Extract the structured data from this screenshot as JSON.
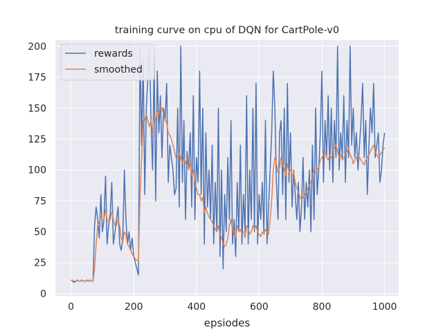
{
  "chart_data": {
    "type": "line",
    "title": "training curve on cpu of DQN for CartPole-v0",
    "xlabel": "epsiodes",
    "ylabel": "",
    "xlim": [
      -50,
      1045
    ],
    "ylim": [
      -2,
      205
    ],
    "xticks": [
      0,
      200,
      400,
      600,
      800,
      1000
    ],
    "yticks": [
      0,
      25,
      50,
      75,
      100,
      125,
      150,
      175,
      200
    ],
    "grid": true,
    "legend_position": "top-left",
    "series": [
      {
        "name": "rewards",
        "color": "#4c72b0",
        "x_start": 0,
        "x_step": 5,
        "values": [
          11,
          10,
          9,
          10,
          11,
          10,
          10,
          11,
          10,
          10,
          11,
          10,
          11,
          10,
          10,
          55,
          70,
          60,
          45,
          80,
          50,
          60,
          95,
          40,
          55,
          65,
          90,
          40,
          50,
          60,
          70,
          40,
          35,
          45,
          100,
          60,
          40,
          50,
          35,
          45,
          30,
          25,
          20,
          15,
          200,
          120,
          190,
          80,
          150,
          175,
          200,
          140,
          100,
          190,
          75,
          180,
          130,
          160,
          110,
          150,
          140,
          170,
          90,
          120,
          110,
          100,
          80,
          85,
          150,
          70,
          200,
          90,
          140,
          60,
          115,
          100,
          130,
          70,
          160,
          60,
          110,
          90,
          180,
          80,
          150,
          40,
          130,
          70,
          100,
          60,
          120,
          40,
          90,
          50,
          150,
          30,
          100,
          20,
          80,
          50,
          110,
          60,
          140,
          40,
          60,
          30,
          90,
          50,
          120,
          40,
          80,
          50,
          160,
          40,
          100,
          60,
          150,
          50,
          170,
          40,
          80,
          60,
          90,
          50,
          140,
          40,
          70,
          100,
          130,
          180,
          150,
          90,
          60,
          130,
          140,
          80,
          150,
          60,
          170,
          90,
          130,
          70,
          100,
          80,
          60,
          90,
          50,
          70,
          110,
          60,
          90,
          70,
          100,
          50,
          120,
          60,
          150,
          80,
          100,
          130,
          180,
          90,
          140,
          110,
          160,
          100,
          150,
          90,
          140,
          110,
          200,
          100,
          130,
          110,
          160,
          90,
          140,
          110,
          200,
          120,
          150,
          110,
          130,
          100,
          120,
          140,
          170,
          110,
          140,
          80,
          120,
          150,
          130,
          170,
          110,
          120,
          130,
          90,
          100,
          120,
          130
        ]
      },
      {
        "name": "smoothed",
        "color": "#dd8452",
        "x_start": 0,
        "x_step": 5,
        "values": [
          11,
          10.5,
          10,
          10,
          10.5,
          10,
          10,
          10.5,
          10,
          10,
          10.5,
          10,
          10.5,
          10,
          10,
          20,
          40,
          55,
          58,
          62,
          60,
          60,
          68,
          60,
          58,
          60,
          66,
          60,
          55,
          55,
          60,
          55,
          45,
          42,
          50,
          48,
          40,
          38,
          35,
          32,
          30,
          28,
          27,
          26,
          80,
          110,
          140,
          140,
          145,
          140,
          135,
          140,
          130,
          145,
          140,
          148,
          145,
          152,
          150,
          145,
          140,
          138,
          130,
          128,
          125,
          120,
          115,
          110,
          110,
          115,
          110,
          105,
          110,
          105,
          110,
          100,
          105,
          95,
          100,
          90,
          85,
          80,
          80,
          75,
          78,
          65,
          70,
          65,
          62,
          60,
          58,
          55,
          52,
          50,
          55,
          48,
          45,
          40,
          38,
          40,
          45,
          55,
          60,
          52,
          48,
          45,
          55,
          50,
          52,
          48,
          50,
          45,
          55,
          52,
          48,
          50,
          55,
          52,
          55,
          50,
          48,
          46,
          50,
          48,
          52,
          50,
          48,
          60,
          75,
          100,
          110,
          105,
          98,
          102,
          110,
          104,
          100,
          95,
          105,
          98,
          100,
          95,
          98,
          90,
          85,
          82,
          78,
          76,
          78,
          80,
          82,
          85,
          88,
          90,
          95,
          100,
          98,
          100,
          102,
          108,
          110,
          112,
          115,
          110,
          108,
          112,
          110,
          112,
          118,
          120,
          115,
          110,
          112,
          108,
          110,
          112,
          115,
          118,
          112,
          110,
          105,
          108,
          110,
          112,
          110,
          108,
          106,
          104,
          108,
          110,
          112,
          115,
          118,
          120,
          115,
          112,
          110,
          112,
          114,
          116,
          118
        ]
      }
    ]
  }
}
